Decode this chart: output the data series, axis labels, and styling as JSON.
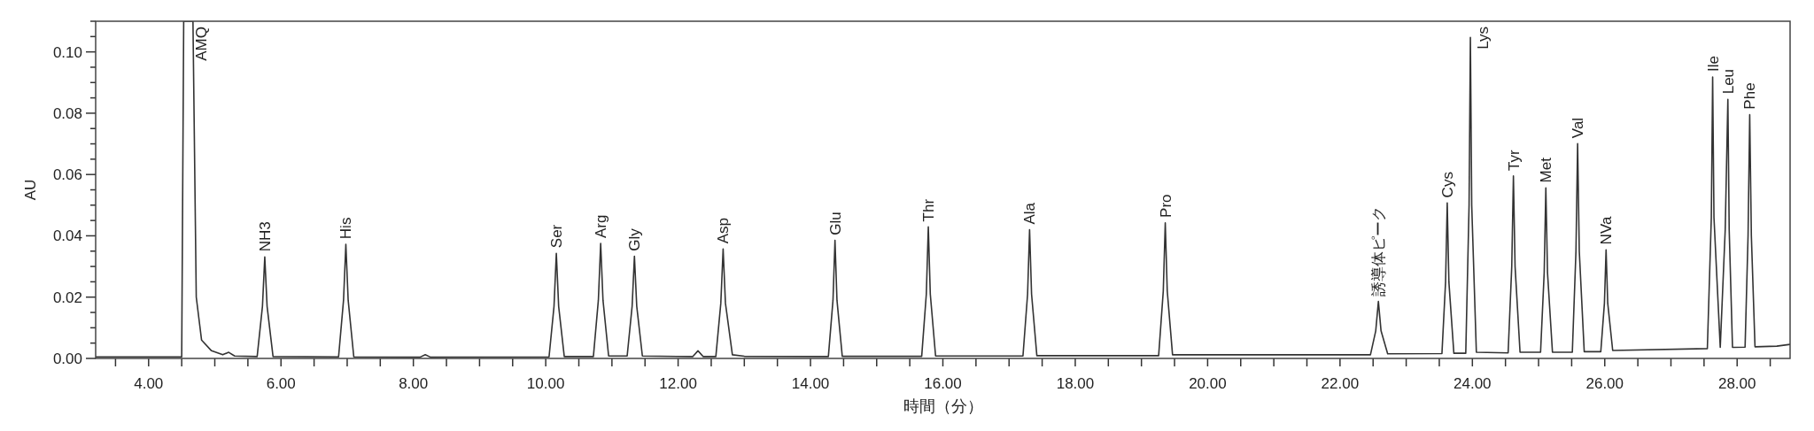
{
  "chart_data": {
    "type": "line",
    "xlabel": "時間（分）",
    "ylabel": "AU",
    "xlim": [
      3.2,
      28.8
    ],
    "ylim": [
      0,
      0.11
    ],
    "xticks": [
      {
        "value": 3.5,
        "label": null
      },
      {
        "value": 4,
        "label": "4.00"
      },
      {
        "value": 4.5,
        "label": null
      },
      {
        "value": 5,
        "label": null
      },
      {
        "value": 5.5,
        "label": null
      },
      {
        "value": 6,
        "label": "6.00"
      },
      {
        "value": 6.5,
        "label": null
      },
      {
        "value": 7,
        "label": null
      },
      {
        "value": 7.5,
        "label": null
      },
      {
        "value": 8,
        "label": "8.00"
      },
      {
        "value": 8.5,
        "label": null
      },
      {
        "value": 9,
        "label": null
      },
      {
        "value": 9.5,
        "label": null
      },
      {
        "value": 10,
        "label": "10.00"
      },
      {
        "value": 10.5,
        "label": null
      },
      {
        "value": 11,
        "label": null
      },
      {
        "value": 11.5,
        "label": null
      },
      {
        "value": 12,
        "label": "12.00"
      },
      {
        "value": 12.5,
        "label": null
      },
      {
        "value": 13,
        "label": null
      },
      {
        "value": 13.5,
        "label": null
      },
      {
        "value": 14,
        "label": "14.00"
      },
      {
        "value": 14.5,
        "label": null
      },
      {
        "value": 15,
        "label": null
      },
      {
        "value": 15.5,
        "label": null
      },
      {
        "value": 16,
        "label": "16.00"
      },
      {
        "value": 16.5,
        "label": null
      },
      {
        "value": 17,
        "label": null
      },
      {
        "value": 17.5,
        "label": null
      },
      {
        "value": 18,
        "label": "18.00"
      },
      {
        "value": 18.5,
        "label": null
      },
      {
        "value": 19,
        "label": null
      },
      {
        "value": 19.5,
        "label": null
      },
      {
        "value": 20,
        "label": "20.00"
      },
      {
        "value": 20.5,
        "label": null
      },
      {
        "value": 21,
        "label": null
      },
      {
        "value": 21.5,
        "label": null
      },
      {
        "value": 22,
        "label": "22.00"
      },
      {
        "value": 22.5,
        "label": null
      },
      {
        "value": 23,
        "label": null
      },
      {
        "value": 23.5,
        "label": null
      },
      {
        "value": 24,
        "label": "24.00"
      },
      {
        "value": 24.5,
        "label": null
      },
      {
        "value": 25,
        "label": null
      },
      {
        "value": 25.5,
        "label": null
      },
      {
        "value": 26,
        "label": "26.00"
      },
      {
        "value": 26.5,
        "label": null
      },
      {
        "value": 27,
        "label": null
      },
      {
        "value": 27.5,
        "label": null
      },
      {
        "value": 28,
        "label": "28.00"
      },
      {
        "value": 28.5,
        "label": null
      }
    ],
    "yticks": [
      {
        "value": 0,
        "label": "0.00"
      },
      {
        "value": 0.005,
        "label": null
      },
      {
        "value": 0.01,
        "label": null
      },
      {
        "value": 0.015,
        "label": null
      },
      {
        "value": 0.02,
        "label": "0.02"
      },
      {
        "value": 0.025,
        "label": null
      },
      {
        "value": 0.03,
        "label": null
      },
      {
        "value": 0.035,
        "label": null
      },
      {
        "value": 0.04,
        "label": "0.04"
      },
      {
        "value": 0.045,
        "label": null
      },
      {
        "value": 0.05,
        "label": null
      },
      {
        "value": 0.055,
        "label": null
      },
      {
        "value": 0.06,
        "label": "0.06"
      },
      {
        "value": 0.065,
        "label": null
      },
      {
        "value": 0.07,
        "label": null
      },
      {
        "value": 0.075,
        "label": null
      },
      {
        "value": 0.08,
        "label": "0.08"
      },
      {
        "value": 0.085,
        "label": null
      },
      {
        "value": 0.09,
        "label": null
      },
      {
        "value": 0.095,
        "label": null
      },
      {
        "value": 0.1,
        "label": "0.10"
      },
      {
        "value": 0.105,
        "label": null
      },
      {
        "value": 0.11,
        "label": null
      }
    ],
    "marker": "none",
    "line_style": "solid",
    "series": [
      {
        "color": "#333333",
        "x": [
          3.2,
          4.5,
          4.53,
          4.67,
          4.72,
          4.8,
          4.95,
          5.12,
          5.21,
          5.3,
          5.64,
          5.72,
          5.755,
          5.79,
          5.88,
          6.87,
          6.945,
          6.98,
          7.015,
          7.1,
          8.1,
          8.18,
          8.26,
          10.05,
          10.125,
          10.16,
          10.195,
          10.28,
          10.72,
          10.795,
          10.83,
          10.865,
          10.95,
          11.23,
          11.305,
          11.34,
          11.375,
          11.46,
          12.22,
          12.3,
          12.38,
          12.57,
          12.645,
          12.68,
          12.715,
          12.82,
          13.0,
          14.27,
          14.34,
          14.37,
          14.4,
          14.48,
          15.68,
          15.75,
          15.78,
          15.81,
          15.89,
          17.21,
          17.28,
          17.31,
          17.34,
          17.42,
          19.26,
          19.33,
          19.36,
          19.39,
          19.47,
          22.46,
          22.54,
          22.58,
          22.62,
          22.72,
          23.54,
          23.595,
          23.62,
          23.645,
          23.72,
          23.9,
          23.95,
          23.97,
          23.99,
          24.06,
          24.54,
          24.595,
          24.62,
          24.645,
          24.72,
          25.03,
          25.085,
          25.11,
          25.135,
          25.21,
          25.51,
          25.565,
          25.59,
          25.615,
          25.69,
          25.94,
          25.995,
          26.02,
          26.045,
          26.12,
          27.55,
          27.61,
          27.63,
          27.65,
          27.745,
          27.82,
          27.86,
          27.88,
          27.93,
          28.12,
          28.165,
          28.19,
          28.215,
          28.27,
          28.6,
          28.8
        ],
        "values": [
          0.0005,
          0.0005,
          0.11,
          0.11,
          0.02,
          0.006,
          0.0025,
          0.0012,
          0.002,
          0.0008,
          0.0006,
          0.017,
          0.0331,
          0.017,
          0.0006,
          0.0005,
          0.019,
          0.0372,
          0.019,
          0.0005,
          0.0004,
          0.0012,
          0.0004,
          0.0005,
          0.017,
          0.0343,
          0.017,
          0.0006,
          0.0006,
          0.019,
          0.0375,
          0.019,
          0.0008,
          0.0008,
          0.017,
          0.0333,
          0.017,
          0.0008,
          0.0006,
          0.0025,
          0.0006,
          0.0006,
          0.018,
          0.0357,
          0.018,
          0.0012,
          0.0007,
          0.0006,
          0.019,
          0.0385,
          0.019,
          0.0007,
          0.0007,
          0.021,
          0.0429,
          0.021,
          0.0008,
          0.0008,
          0.021,
          0.042,
          0.021,
          0.0009,
          0.0009,
          0.022,
          0.0442,
          0.022,
          0.0012,
          0.0012,
          0.009,
          0.0186,
          0.009,
          0.0015,
          0.0016,
          0.025,
          0.0507,
          0.025,
          0.0017,
          0.0017,
          0.05,
          0.1047,
          0.05,
          0.002,
          0.0018,
          0.03,
          0.0595,
          0.03,
          0.002,
          0.002,
          0.028,
          0.0556,
          0.028,
          0.002,
          0.002,
          0.035,
          0.0701,
          0.035,
          0.0022,
          0.0022,
          0.018,
          0.0354,
          0.018,
          0.0026,
          0.0032,
          0.046,
          0.0918,
          0.046,
          0.0036,
          0.042,
          0.0845,
          0.042,
          0.0036,
          0.0037,
          0.04,
          0.0795,
          0.04,
          0.0038,
          0.004,
          0.0046
        ]
      }
    ],
    "annotations": [
      {
        "text": "AMQ",
        "x": 4.6,
        "y": 0.11
      },
      {
        "text": "NH3",
        "x": 5.755,
        "y": 0.0331
      },
      {
        "text": "His",
        "x": 6.98,
        "y": 0.0372
      },
      {
        "text": "Ser",
        "x": 10.16,
        "y": 0.0343
      },
      {
        "text": "Arg",
        "x": 10.83,
        "y": 0.0375
      },
      {
        "text": "Gly",
        "x": 11.34,
        "y": 0.0333
      },
      {
        "text": "Asp",
        "x": 12.68,
        "y": 0.0357
      },
      {
        "text": "Glu",
        "x": 14.37,
        "y": 0.0385
      },
      {
        "text": "Thr",
        "x": 15.78,
        "y": 0.0429
      },
      {
        "text": "Ala",
        "x": 17.31,
        "y": 0.042
      },
      {
        "text": "Pro",
        "x": 19.36,
        "y": 0.0442
      },
      {
        "text": "誘導体ピーク",
        "x": 22.58,
        "y": 0.0186
      },
      {
        "text": "Cys",
        "x": 23.62,
        "y": 0.0507
      },
      {
        "text": "Lys",
        "x": 23.97,
        "y": 0.1047
      },
      {
        "text": "Tyr",
        "x": 24.62,
        "y": 0.0595
      },
      {
        "text": "Met",
        "x": 25.11,
        "y": 0.0556
      },
      {
        "text": "Val",
        "x": 25.59,
        "y": 0.0701
      },
      {
        "text": "NVa",
        "x": 26.02,
        "y": 0.0354
      },
      {
        "text": "Ile",
        "x": 27.63,
        "y": 0.0918
      },
      {
        "text": "Leu",
        "x": 27.86,
        "y": 0.0845
      },
      {
        "text": "Phe",
        "x": 28.19,
        "y": 0.0795
      }
    ]
  }
}
